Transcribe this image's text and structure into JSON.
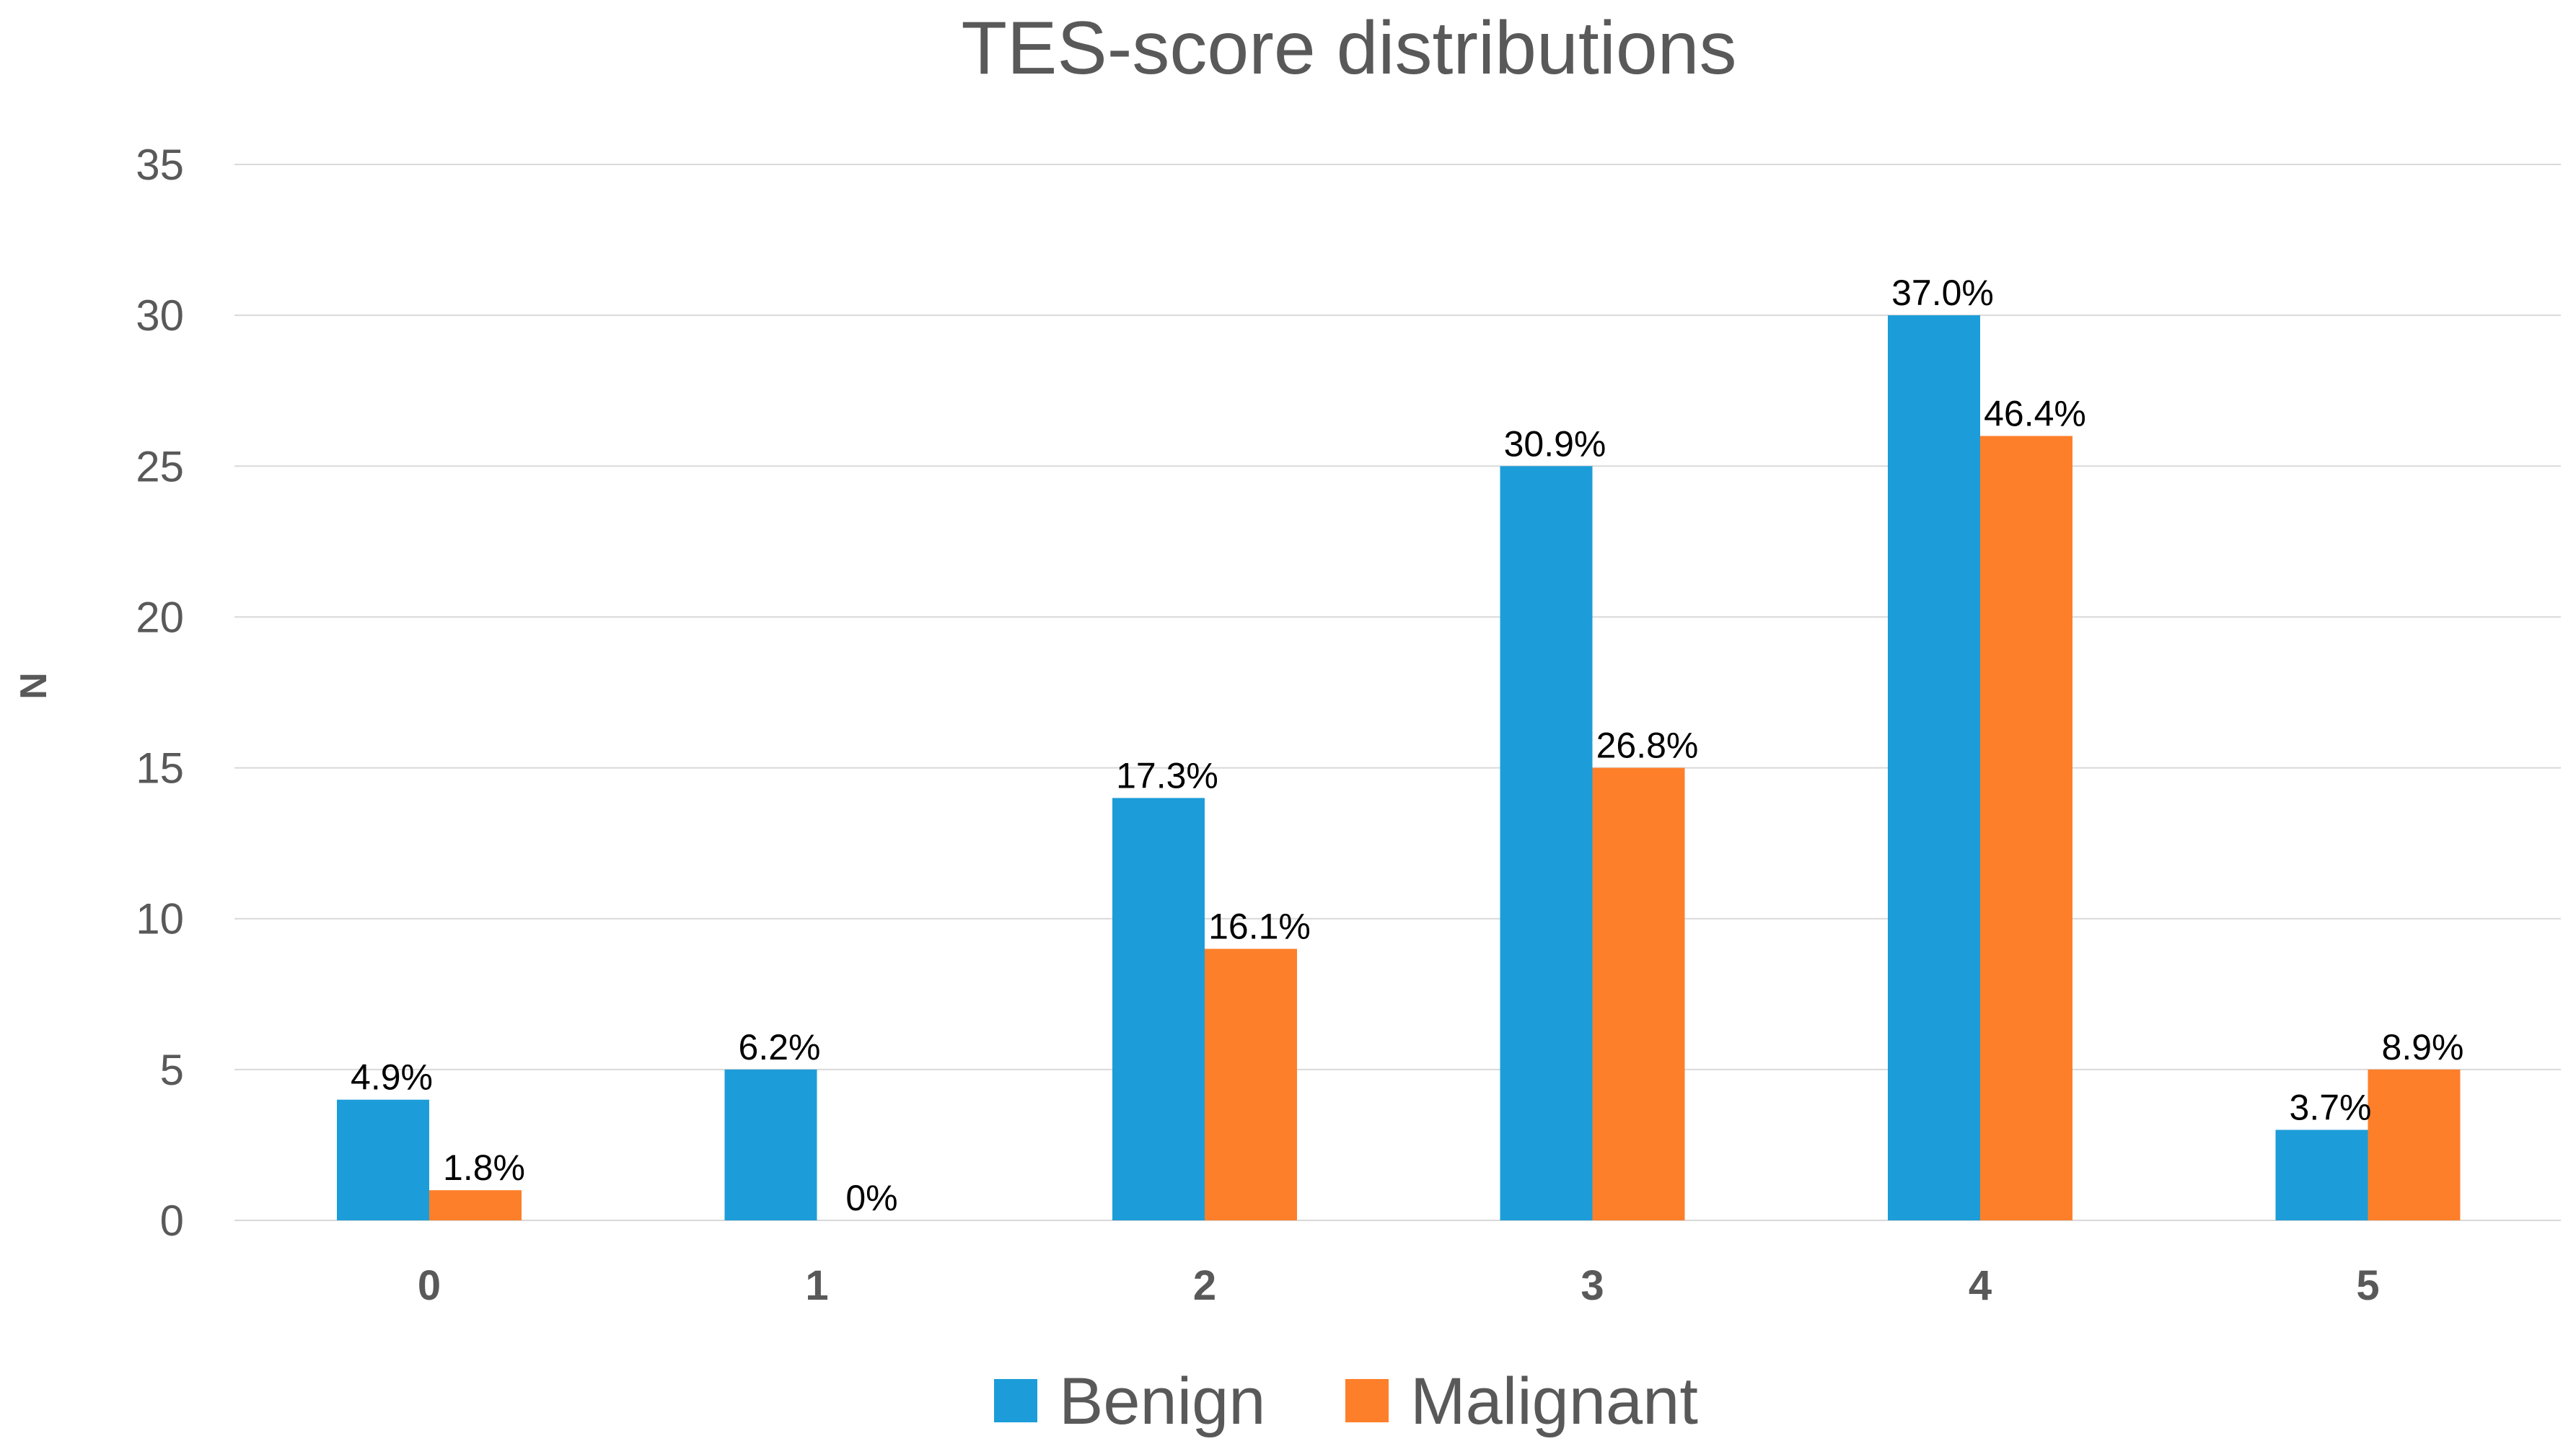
{
  "chart_data": {
    "type": "bar",
    "title": "TES-score distributions",
    "xlabel": "",
    "ylabel": "N",
    "ylim": [
      0,
      35
    ],
    "yticks": [
      0,
      5,
      10,
      15,
      20,
      25,
      30,
      35
    ],
    "grid": true,
    "legend_position": "bottom",
    "categories": [
      "0",
      "1",
      "2",
      "3",
      "4",
      "5"
    ],
    "series": [
      {
        "name": "Benign",
        "color": "#1c9dd9",
        "values": [
          4,
          5,
          14,
          25,
          30,
          3
        ],
        "labels": [
          "4.9%",
          "6.2%",
          "17.3%",
          "30.9%",
          "37.0%",
          "3.7%"
        ]
      },
      {
        "name": "Malignant",
        "color": "#fe7f2a",
        "values": [
          1,
          0,
          9,
          15,
          26,
          5
        ],
        "labels": [
          "1.8%",
          "0%",
          "16.1%",
          "26.8%",
          "46.4%",
          "8.9%"
        ]
      }
    ]
  }
}
